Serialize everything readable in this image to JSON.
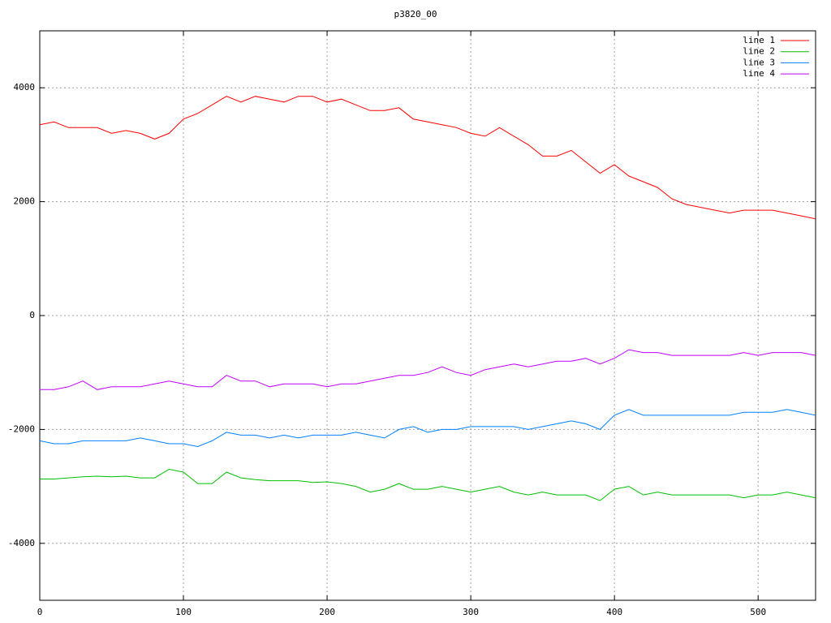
{
  "chart_data": {
    "type": "line",
    "title": "p3820_00",
    "x": [
      0,
      10,
      20,
      30,
      40,
      50,
      60,
      70,
      80,
      90,
      100,
      110,
      120,
      130,
      140,
      150,
      160,
      170,
      180,
      190,
      200,
      210,
      220,
      230,
      240,
      250,
      260,
      270,
      280,
      290,
      300,
      310,
      320,
      330,
      340,
      350,
      360,
      370,
      380,
      390,
      400,
      410,
      420,
      430,
      440,
      450,
      460,
      470,
      480,
      490,
      500,
      510,
      520,
      530,
      540
    ],
    "series": [
      {
        "name": "line 1",
        "color": "#ff0000",
        "values": [
          3350,
          3400,
          3300,
          3300,
          3300,
          3200,
          3250,
          3200,
          3100,
          3200,
          3450,
          3550,
          3700,
          3850,
          3750,
          3850,
          3800,
          3750,
          3850,
          3850,
          3750,
          3800,
          3700,
          3600,
          3600,
          3650,
          3450,
          3400,
          3350,
          3300,
          3200,
          3150,
          3300,
          3150,
          3000,
          2800,
          2800,
          2900,
          2700,
          2500,
          2650,
          2450,
          2350,
          2250,
          2050,
          1950,
          1900,
          1850,
          1800,
          1850,
          1850,
          1850,
          1800,
          1750,
          1700
        ]
      },
      {
        "name": "line 2",
        "color": "#00c000",
        "values": [
          -2870,
          -2870,
          -2850,
          -2830,
          -2820,
          -2830,
          -2820,
          -2850,
          -2850,
          -2700,
          -2750,
          -2950,
          -2950,
          -2750,
          -2850,
          -2880,
          -2900,
          -2900,
          -2900,
          -2930,
          -2920,
          -2950,
          -3000,
          -3100,
          -3050,
          -2950,
          -3050,
          -3050,
          -3000,
          -3050,
          -3100,
          -3050,
          -3000,
          -3100,
          -3150,
          -3100,
          -3150,
          -3150,
          -3150,
          -3250,
          -3050,
          -3000,
          -3150,
          -3100,
          -3150,
          -3150,
          -3150,
          -3150,
          -3150,
          -3200,
          -3150,
          -3150,
          -3100,
          -3150,
          -3200
        ]
      },
      {
        "name": "line 3",
        "color": "#0080ff",
        "values": [
          -2200,
          -2250,
          -2250,
          -2200,
          -2200,
          -2200,
          -2200,
          -2150,
          -2200,
          -2250,
          -2250,
          -2300,
          -2200,
          -2050,
          -2100,
          -2100,
          -2150,
          -2100,
          -2150,
          -2100,
          -2100,
          -2100,
          -2050,
          -2100,
          -2150,
          -2000,
          -1950,
          -2050,
          -2000,
          -2000,
          -1950,
          -1950,
          -1950,
          -1950,
          -2000,
          -1950,
          -1900,
          -1850,
          -1900,
          -2000,
          -1750,
          -1650,
          -1750,
          -1750,
          -1750,
          -1750,
          -1750,
          -1750,
          -1750,
          -1700,
          -1700,
          -1700,
          -1650,
          -1700,
          -1750
        ]
      },
      {
        "name": "line 4",
        "color": "#c000ff",
        "values": [
          -1300,
          -1300,
          -1250,
          -1150,
          -1300,
          -1250,
          -1250,
          -1250,
          -1200,
          -1150,
          -1200,
          -1250,
          -1250,
          -1050,
          -1150,
          -1150,
          -1250,
          -1200,
          -1200,
          -1200,
          -1250,
          -1200,
          -1200,
          -1150,
          -1100,
          -1050,
          -1050,
          -1000,
          -900,
          -1000,
          -1050,
          -950,
          -900,
          -850,
          -900,
          -850,
          -800,
          -800,
          -750,
          -850,
          -750,
          -600,
          -650,
          -650,
          -700,
          -700,
          -700,
          -700,
          -700,
          -650,
          -700,
          -650,
          -650,
          -650,
          -700
        ]
      }
    ],
    "xlim": [
      0,
      540
    ],
    "xticks": [
      0,
      100,
      200,
      300,
      400,
      500
    ],
    "ylim": [
      -5000,
      5000
    ],
    "yticks": [
      -4000,
      -2000,
      0,
      2000,
      4000
    ],
    "grid": true,
    "legend": "top-right"
  }
}
